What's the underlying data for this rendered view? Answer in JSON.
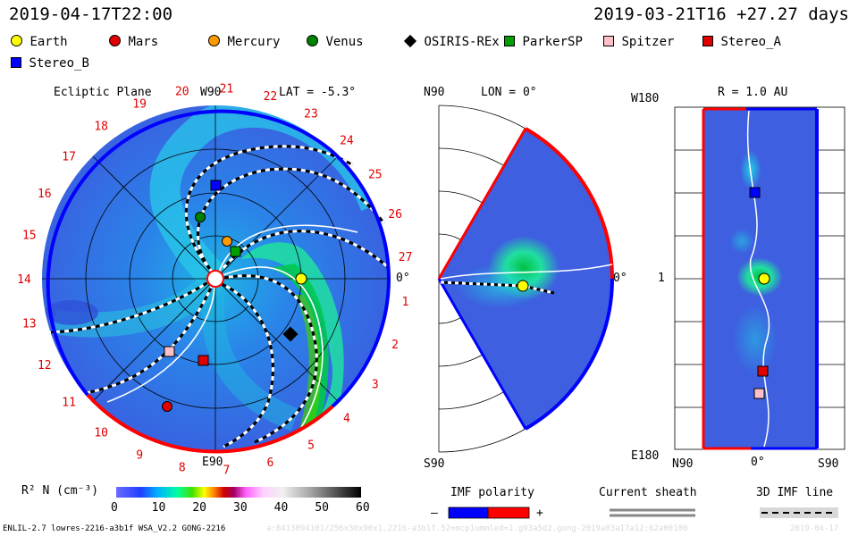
{
  "header": {
    "left_time": "2019-04-17T22:00",
    "right_time": "2019-03-21T16 +27.27 days"
  },
  "legend": [
    {
      "name": "Earth",
      "color": "#ffff00",
      "shape": "circle"
    },
    {
      "name": "Mars",
      "color": "#e00000",
      "shape": "circle"
    },
    {
      "name": "Mercury",
      "color": "#ff9900",
      "shape": "circle"
    },
    {
      "name": "Venus",
      "color": "#008000",
      "shape": "circle"
    },
    {
      "name": "OSIRIS-REx",
      "color": "#000000",
      "shape": "diamond"
    },
    {
      "name": "ParkerSP",
      "color": "#00a000",
      "shape": "square"
    },
    {
      "name": "Spitzer",
      "color": "#ffc0c8",
      "shape": "square"
    },
    {
      "name": "Stereo_A",
      "color": "#e00000",
      "shape": "square"
    },
    {
      "name": "Stereo_B",
      "color": "#0000ff",
      "shape": "square"
    }
  ],
  "panels": {
    "ecliptic": {
      "title": "Ecliptic Plane",
      "top_label": "W90",
      "lat_label": "LAT = -5.3°",
      "right_label": "0°",
      "bottom_label": "E90",
      "rotations": [
        "14",
        "15",
        "16",
        "17",
        "18",
        "19",
        "20",
        "21",
        "22",
        "23",
        "24",
        "25",
        "26",
        "27",
        "1",
        "2",
        "3",
        "4",
        "5",
        "6",
        "7",
        "8",
        "9",
        "10",
        "11",
        "12",
        "13"
      ]
    },
    "meridional": {
      "top_label": "N90",
      "lon_label": "LON = 0°",
      "right_label": "0°",
      "bottom_label": "S90"
    },
    "shell": {
      "left_top": "W180",
      "title": "R = 1.0 AU",
      "left_mid": "1",
      "left_bottom": "E180",
      "bottom_left": "N90",
      "bottom_mid": "0°",
      "bottom_right": "S90"
    }
  },
  "colorbar": {
    "label": "R² N (cm⁻³)",
    "ticks": [
      "0",
      "10",
      "20",
      "30",
      "40",
      "50",
      "60"
    ]
  },
  "imf": {
    "label": "IMF polarity",
    "minus": "–",
    "plus": "+",
    "neg_color": "#0000ff",
    "pos_color": "#ff0000"
  },
  "current_sheath": {
    "label": "Current sheath"
  },
  "imf_line": {
    "label": "3D IMF line"
  },
  "footer": {
    "model": "ENLIL-2.7 lowres-2216-a3b1f WSA_V2.2 GONG-2216",
    "run": "a:0413094101/256x30x90x1.2216-a3b1f.52=mcp1ummled=1.g93a5d2.gong-2019a03a17a12:62a00100",
    "date": "2019-04-17"
  }
}
